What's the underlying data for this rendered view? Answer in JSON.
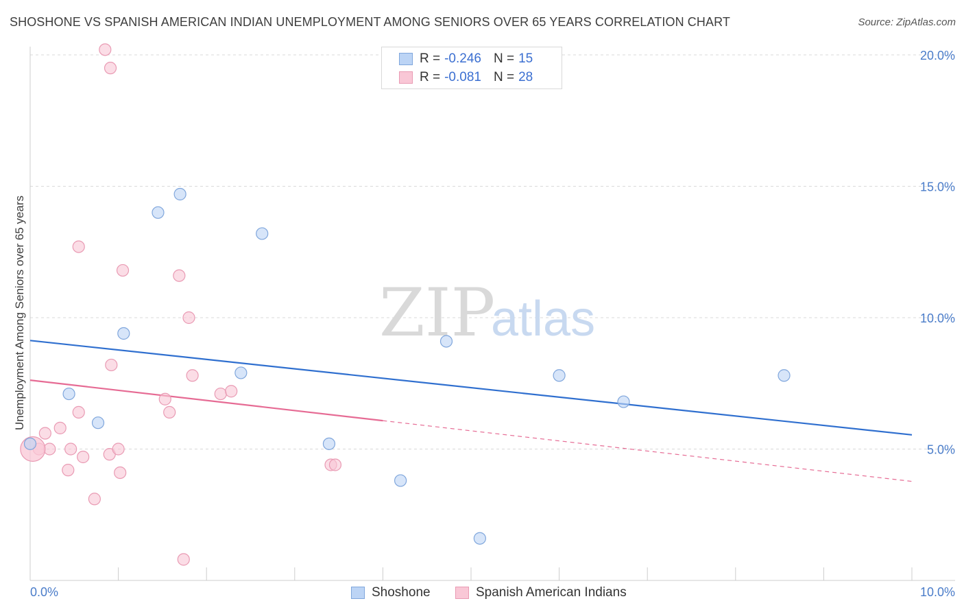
{
  "title": "SHOSHONE VS SPANISH AMERICAN INDIAN UNEMPLOYMENT AMONG SENIORS OVER 65 YEARS CORRELATION CHART",
  "source": "Source: ZipAtlas.com",
  "watermark": {
    "zip": "ZIP",
    "atlas": "atlas"
  },
  "legend": {
    "rows": [
      {
        "r_label": "R =",
        "r_value": "-0.246",
        "n_label": "N =",
        "n_value": "15"
      },
      {
        "r_label": "R =",
        "r_value": "-0.081",
        "n_label": "N =",
        "n_value": "28"
      }
    ]
  },
  "bottom_legend": [
    {
      "label": "Shoshone"
    },
    {
      "label": "Spanish American Indians"
    }
  ],
  "colors": {
    "series_a_fill": "#bcd4f5",
    "series_a_stroke": "#7fa6dc",
    "series_a_line": "#2f6fcf",
    "series_b_fill": "#f9c7d6",
    "series_b_stroke": "#e99ab3",
    "series_b_line": "#e66b94",
    "grid": "#d9d9d9",
    "tick_text": "#4a7cc9"
  },
  "chart_data": {
    "type": "scatter",
    "title": "SHOSHONE VS SPANISH AMERICAN INDIAN UNEMPLOYMENT AMONG SENIORS OVER 65 YEARS CORRELATION CHART",
    "xlabel": "",
    "ylabel": "Unemployment Among Seniors over 65 years",
    "xlim": [
      0,
      10
    ],
    "ylim": [
      0,
      20
    ],
    "x_tick_labels": [
      "0.0%",
      "10.0%"
    ],
    "y_ticks": [
      5,
      10,
      15,
      20
    ],
    "y_tick_labels": [
      "5.0%",
      "10.0%",
      "15.0%",
      "20.0%"
    ],
    "grid": true,
    "series": [
      {
        "name": "Shoshone",
        "r": -0.246,
        "n": 15,
        "points": [
          [
            0.0,
            5.2
          ],
          [
            0.44,
            7.1
          ],
          [
            0.77,
            6.0
          ],
          [
            1.06,
            9.4
          ],
          [
            1.45,
            14.0
          ],
          [
            1.7,
            14.7
          ],
          [
            2.39,
            7.9
          ],
          [
            2.63,
            13.2
          ],
          [
            3.39,
            5.2
          ],
          [
            4.2,
            3.8
          ],
          [
            4.72,
            9.1
          ],
          [
            5.1,
            1.6
          ],
          [
            6.0,
            7.8
          ],
          [
            6.73,
            6.8
          ],
          [
            8.55,
            7.8
          ]
        ],
        "trend": {
          "x": [
            0,
            10
          ],
          "y": [
            9.13,
            5.54
          ]
        }
      },
      {
        "name": "Spanish American Indians",
        "r": -0.081,
        "n": 28,
        "points": [
          [
            0.1,
            5.0
          ],
          [
            0.17,
            5.6
          ],
          [
            0.22,
            5.0
          ],
          [
            0.34,
            5.8
          ],
          [
            0.43,
            4.2
          ],
          [
            0.46,
            5.0
          ],
          [
            0.55,
            6.4
          ],
          [
            0.55,
            12.7
          ],
          [
            0.6,
            4.7
          ],
          [
            0.73,
            3.1
          ],
          [
            0.85,
            20.2
          ],
          [
            0.9,
            4.8
          ],
          [
            0.91,
            19.5
          ],
          [
            0.92,
            8.2
          ],
          [
            1.0,
            5.0
          ],
          [
            1.02,
            4.1
          ],
          [
            1.05,
            11.8
          ],
          [
            1.53,
            6.9
          ],
          [
            1.58,
            6.4
          ],
          [
            1.69,
            11.6
          ],
          [
            1.74,
            0.8
          ],
          [
            1.8,
            10.0
          ],
          [
            1.84,
            7.8
          ],
          [
            2.16,
            7.1
          ],
          [
            2.28,
            7.2
          ],
          [
            3.41,
            4.4
          ],
          [
            3.46,
            4.4
          ],
          [
            0.03,
            5.0
          ]
        ],
        "trend": {
          "x": [
            0,
            10
          ],
          "y": [
            7.62,
            3.77
          ],
          "solid_until_x": 4
        }
      }
    ]
  }
}
